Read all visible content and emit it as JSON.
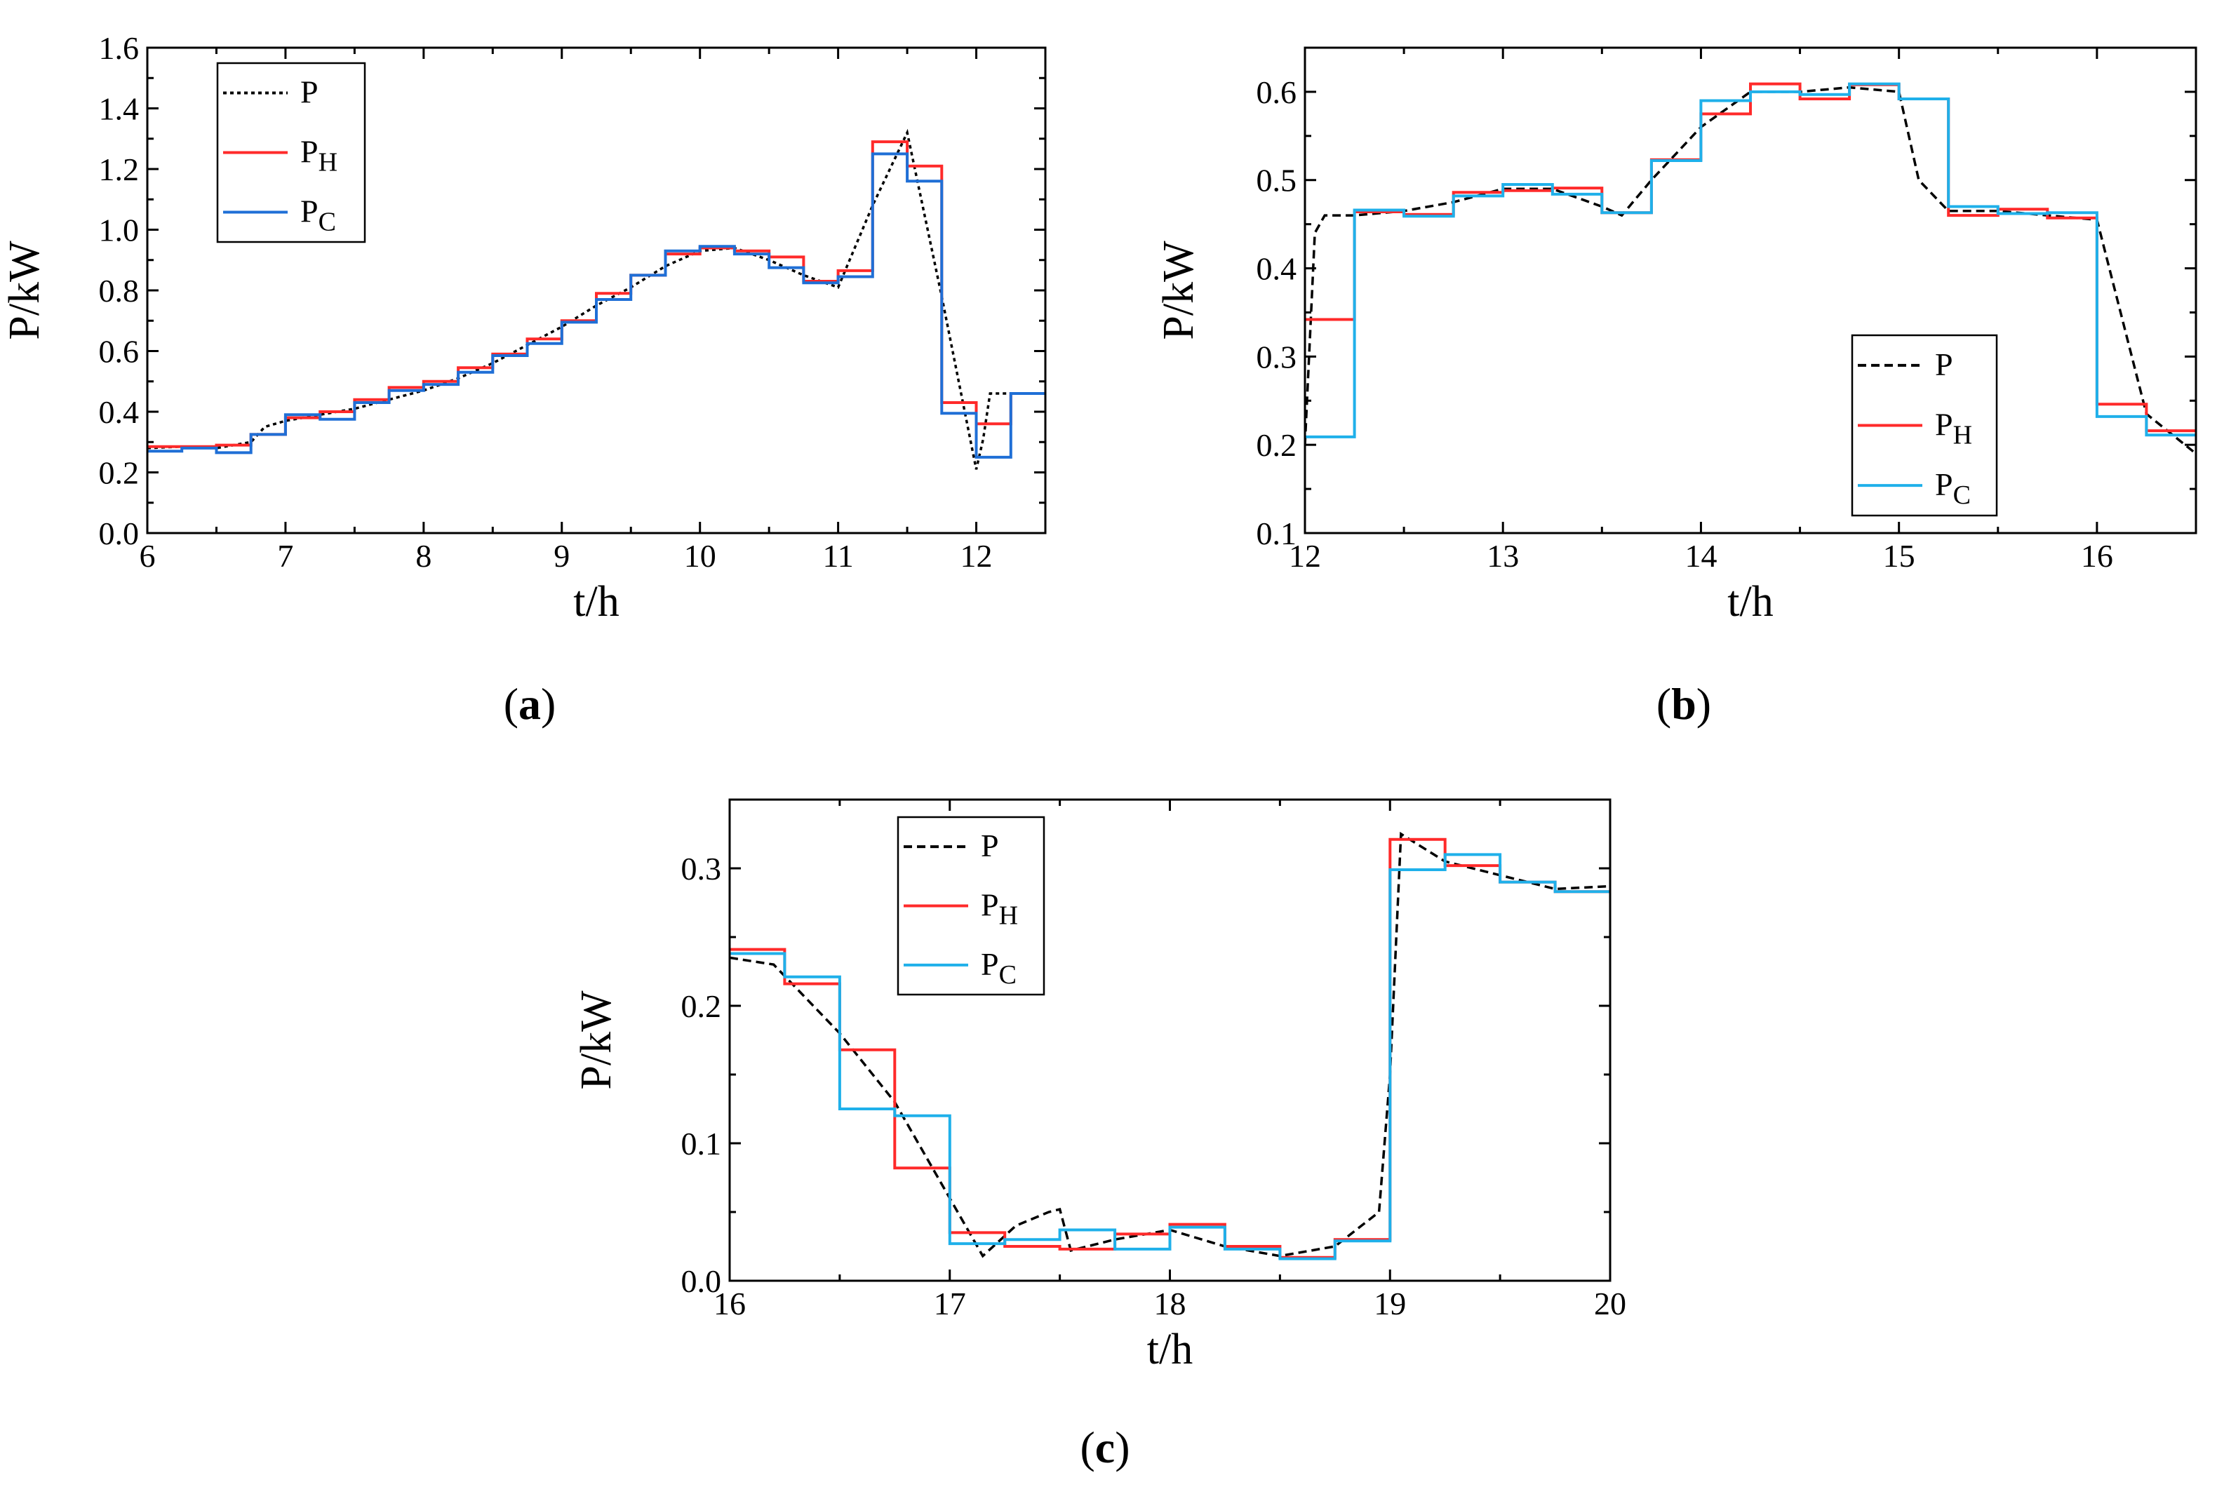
{
  "figure": {
    "colors": {
      "P": "#000000",
      "PH": "#ff2a2a",
      "PC_a": "#1f6fd6",
      "PC": "#1fb0ea"
    }
  },
  "chart_data": [
    {
      "panel": "a",
      "caption_open": "(",
      "caption_letter": "a",
      "caption_close": ")",
      "type": "line",
      "title": "",
      "xlabel": "t/h",
      "ylabel": "P/kW",
      "xlim": [
        6,
        12.5
      ],
      "ylim": [
        0.0,
        1.6
      ],
      "xticks": [
        6,
        7,
        8,
        9,
        10,
        11,
        12
      ],
      "xtick_labels": [
        "6",
        "7",
        "8",
        "9",
        "10",
        "11",
        "12"
      ],
      "yticks": [
        0.0,
        0.2,
        0.4,
        0.6,
        0.8,
        1.0,
        1.2,
        1.4,
        1.6
      ],
      "ytick_labels": [
        "0.0",
        "0.2",
        "0.4",
        "0.6",
        "0.8",
        "1.0",
        "1.2",
        "1.4",
        "1.6"
      ],
      "legend": {
        "position": "top-left",
        "entries": [
          {
            "key": "P",
            "main": "P",
            "sub": ""
          },
          {
            "key": "PH",
            "main": "P",
            "sub": "H"
          },
          {
            "key": "PC",
            "main": "P",
            "sub": "C"
          }
        ]
      },
      "series": [
        {
          "name": "P",
          "style": "dotted",
          "color": "#000000",
          "x": [
            6.0,
            6.25,
            6.5,
            6.75,
            6.85,
            7.0,
            7.25,
            7.5,
            7.75,
            8.0,
            8.25,
            8.5,
            8.75,
            9.0,
            9.25,
            9.5,
            9.75,
            10.0,
            10.25,
            10.5,
            10.75,
            11.0,
            11.25,
            11.5,
            11.75,
            12.0,
            12.05,
            12.1,
            12.25
          ],
          "y": [
            0.28,
            0.285,
            0.28,
            0.3,
            0.35,
            0.37,
            0.39,
            0.41,
            0.44,
            0.47,
            0.51,
            0.56,
            0.62,
            0.68,
            0.75,
            0.81,
            0.88,
            0.93,
            0.94,
            0.9,
            0.85,
            0.81,
            1.08,
            1.32,
            0.78,
            0.21,
            0.31,
            0.46,
            0.46
          ]
        },
        {
          "name": "PH",
          "style": "step",
          "color": "#ff2a2a",
          "edges": [
            6.0,
            6.25,
            6.5,
            6.75,
            7.0,
            7.25,
            7.5,
            7.75,
            8.0,
            8.25,
            8.5,
            8.75,
            9.0,
            9.25,
            9.5,
            9.75,
            10.0,
            10.25,
            10.5,
            10.75,
            11.0,
            11.25,
            11.5,
            11.75,
            12.0,
            12.25,
            12.5
          ],
          "values": [
            0.285,
            0.285,
            0.29,
            0.325,
            0.38,
            0.4,
            0.44,
            0.48,
            0.5,
            0.545,
            0.59,
            0.64,
            0.7,
            0.79,
            0.85,
            0.92,
            0.94,
            0.93,
            0.91,
            0.83,
            0.865,
            1.29,
            1.21,
            0.43,
            0.36,
            0.46
          ]
        },
        {
          "name": "PC",
          "style": "step",
          "color": "#1f6fd6",
          "edges": [
            6.0,
            6.25,
            6.5,
            6.75,
            7.0,
            7.25,
            7.5,
            7.75,
            8.0,
            8.25,
            8.5,
            8.75,
            9.0,
            9.25,
            9.5,
            9.75,
            10.0,
            10.25,
            10.5,
            10.75,
            11.0,
            11.25,
            11.5,
            11.75,
            12.0,
            12.25,
            12.5
          ],
          "values": [
            0.27,
            0.28,
            0.265,
            0.325,
            0.39,
            0.375,
            0.43,
            0.47,
            0.49,
            0.53,
            0.585,
            0.625,
            0.695,
            0.77,
            0.85,
            0.93,
            0.945,
            0.92,
            0.875,
            0.825,
            0.845,
            1.25,
            1.16,
            0.395,
            0.25,
            0.46
          ]
        }
      ]
    },
    {
      "panel": "b",
      "caption_open": "(",
      "caption_letter": "b",
      "caption_close": ")",
      "type": "line",
      "title": "",
      "xlabel": "t/h",
      "ylabel": "P/kW",
      "xlim": [
        12,
        16.5
      ],
      "ylim": [
        0.1,
        0.65
      ],
      "xticks": [
        12,
        13,
        14,
        15,
        16
      ],
      "xtick_labels": [
        "12",
        "13",
        "14",
        "15",
        "16"
      ],
      "yticks": [
        0.1,
        0.2,
        0.3,
        0.4,
        0.5,
        0.6
      ],
      "ytick_labels": [
        "0.1",
        "0.2",
        "0.3",
        "0.4",
        "0.5",
        "0.6"
      ],
      "legend": {
        "position": "bottom-right",
        "entries": [
          {
            "key": "P",
            "main": "P",
            "sub": ""
          },
          {
            "key": "PH",
            "main": "P",
            "sub": "H"
          },
          {
            "key": "PC",
            "main": "P",
            "sub": "C"
          }
        ]
      },
      "series": [
        {
          "name": "P",
          "style": "dashed",
          "color": "#000000",
          "x": [
            12.0,
            12.05,
            12.1,
            12.25,
            12.5,
            12.75,
            13.0,
            13.25,
            13.5,
            13.6,
            13.75,
            14.0,
            14.25,
            14.5,
            14.75,
            15.0,
            15.1,
            15.25,
            15.5,
            15.75,
            16.0,
            16.25,
            16.5
          ],
          "y": [
            0.2,
            0.44,
            0.46,
            0.46,
            0.465,
            0.475,
            0.49,
            0.49,
            0.47,
            0.46,
            0.5,
            0.56,
            0.6,
            0.6,
            0.605,
            0.6,
            0.5,
            0.465,
            0.465,
            0.46,
            0.455,
            0.235,
            0.19
          ]
        },
        {
          "name": "PH",
          "style": "step",
          "color": "#ff2a2a",
          "edges": [
            12.0,
            12.25,
            12.5,
            12.75,
            13.0,
            13.25,
            13.5,
            13.75,
            14.0,
            14.25,
            14.5,
            14.75,
            15.0,
            15.25,
            15.5,
            15.75,
            16.0,
            16.25,
            16.5
          ],
          "values": [
            0.342,
            0.464,
            0.461,
            0.486,
            0.488,
            0.491,
            0.463,
            0.523,
            0.575,
            0.609,
            0.592,
            0.608,
            0.592,
            0.46,
            0.467,
            0.457,
            0.246,
            0.216
          ]
        },
        {
          "name": "PC",
          "style": "step",
          "color": "#1fb0ea",
          "edges": [
            12.0,
            12.25,
            12.5,
            12.75,
            13.0,
            13.25,
            13.5,
            13.75,
            14.0,
            14.25,
            14.5,
            14.75,
            15.0,
            15.25,
            15.5,
            15.75,
            16.0,
            16.25,
            16.5
          ],
          "values": [
            0.209,
            0.466,
            0.459,
            0.482,
            0.495,
            0.484,
            0.463,
            0.522,
            0.59,
            0.6,
            0.597,
            0.609,
            0.592,
            0.47,
            0.462,
            0.463,
            0.232,
            0.211
          ]
        }
      ]
    },
    {
      "panel": "c",
      "caption_open": "(",
      "caption_letter": "c",
      "caption_close": ")",
      "type": "line",
      "title": "",
      "xlabel": "t/h",
      "ylabel": "P/kW",
      "xlim": [
        16,
        20
      ],
      "ylim": [
        0.0,
        0.35
      ],
      "xticks": [
        16,
        17,
        18,
        19,
        20
      ],
      "xtick_labels": [
        "16",
        "17",
        "18",
        "19",
        "20"
      ],
      "yticks": [
        0.0,
        0.1,
        0.2,
        0.3
      ],
      "ytick_labels": [
        "0.0",
        "0.1",
        "0.2",
        "0.3"
      ],
      "legend": {
        "position": "top-left",
        "entries": [
          {
            "key": "P",
            "main": "P",
            "sub": ""
          },
          {
            "key": "PH",
            "main": "P",
            "sub": "H"
          },
          {
            "key": "PC",
            "main": "P",
            "sub": "C"
          }
        ]
      },
      "series": [
        {
          "name": "P",
          "style": "dashed",
          "color": "#000000",
          "x": [
            16.0,
            16.2,
            16.35,
            16.5,
            16.75,
            17.0,
            17.15,
            17.3,
            17.45,
            17.5,
            17.55,
            17.75,
            18.0,
            18.25,
            18.5,
            18.75,
            18.95,
            19.0,
            19.05,
            19.25,
            19.5,
            19.75,
            20.0
          ],
          "y": [
            0.235,
            0.23,
            0.205,
            0.18,
            0.13,
            0.06,
            0.018,
            0.04,
            0.05,
            0.052,
            0.022,
            0.03,
            0.037,
            0.025,
            0.018,
            0.025,
            0.05,
            0.15,
            0.325,
            0.305,
            0.295,
            0.285,
            0.287
          ]
        },
        {
          "name": "PH",
          "style": "step",
          "color": "#ff2a2a",
          "edges": [
            16.0,
            16.25,
            16.5,
            16.75,
            17.0,
            17.25,
            17.5,
            17.75,
            18.0,
            18.25,
            18.5,
            18.75,
            19.0,
            19.25,
            19.5,
            19.75,
            20.0
          ],
          "values": [
            0.241,
            0.216,
            0.168,
            0.082,
            0.035,
            0.025,
            0.023,
            0.034,
            0.041,
            0.025,
            0.017,
            0.03,
            0.321,
            0.302,
            0.29,
            0.283
          ]
        },
        {
          "name": "PC",
          "style": "step",
          "color": "#1fb0ea",
          "edges": [
            16.0,
            16.25,
            16.5,
            16.75,
            17.0,
            17.25,
            17.5,
            17.75,
            18.0,
            18.25,
            18.5,
            18.75,
            19.0,
            19.25,
            19.5,
            19.75,
            20.0
          ],
          "values": [
            0.238,
            0.221,
            0.125,
            0.12,
            0.027,
            0.03,
            0.037,
            0.023,
            0.039,
            0.023,
            0.016,
            0.029,
            0.299,
            0.31,
            0.29,
            0.283
          ]
        }
      ]
    }
  ]
}
